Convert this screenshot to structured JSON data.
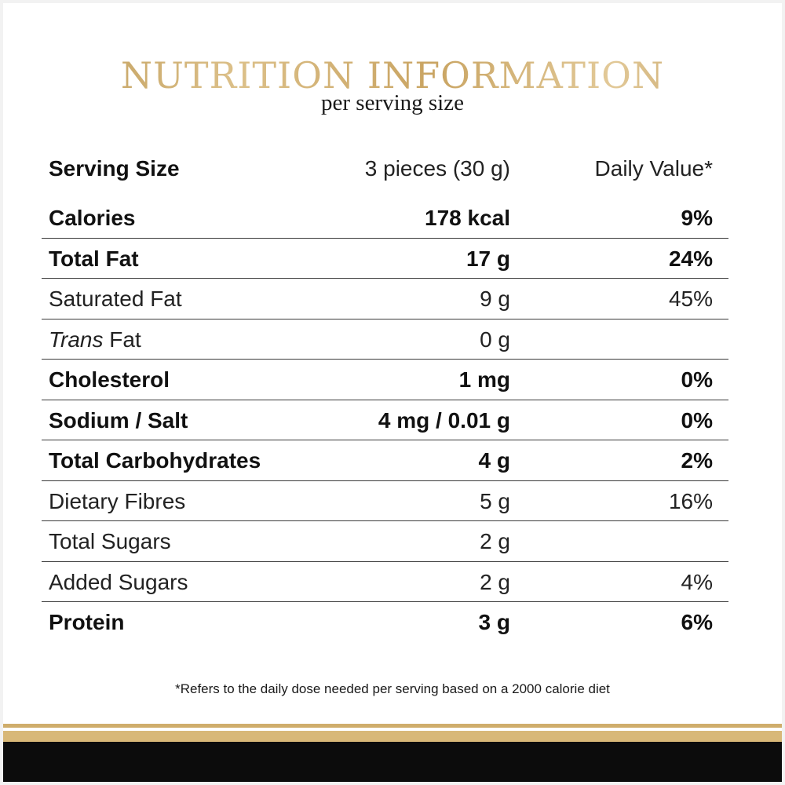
{
  "header": {
    "title": "NUTRITION INFORMATION",
    "subtitle": "per serving size"
  },
  "serving": {
    "label": "Serving Size",
    "amount": "3 pieces (30 g)",
    "dv_header": "Daily Value*"
  },
  "rows": [
    {
      "label": "Calories",
      "amount": "178 kcal",
      "dv": "9%"
    },
    {
      "label": "Total Fat",
      "amount": "17 g",
      "dv": "24%"
    },
    {
      "label": "Saturated Fat",
      "amount": "9 g",
      "dv": "45%"
    },
    {
      "label_italic": "Trans",
      "label_rest": " Fat",
      "amount": "0 g",
      "dv": ""
    },
    {
      "label": "Cholesterol",
      "amount": "1 mg",
      "dv": "0%"
    },
    {
      "label": "Sodium / Salt",
      "amount": "4 mg / 0.01 g",
      "dv": "0%"
    },
    {
      "label": "Total Carbohydrates",
      "amount": "4 g",
      "dv": "2%"
    },
    {
      "label": "Dietary Fibres",
      "amount": "5 g",
      "dv": "16%"
    },
    {
      "label": "Total Sugars",
      "amount": "2 g",
      "dv": ""
    },
    {
      "label": "Added Sugars",
      "amount": "2 g",
      "dv": "4%"
    },
    {
      "label": "Protein",
      "amount": "3 g",
      "dv": "6%"
    }
  ],
  "footnote": "*Refers to the daily dose needed per serving based on a 2000 calorie diet",
  "colors": {
    "title_gold": "#c9a462",
    "band_gold": "#d8b878",
    "band_black": "#0c0c0c"
  }
}
